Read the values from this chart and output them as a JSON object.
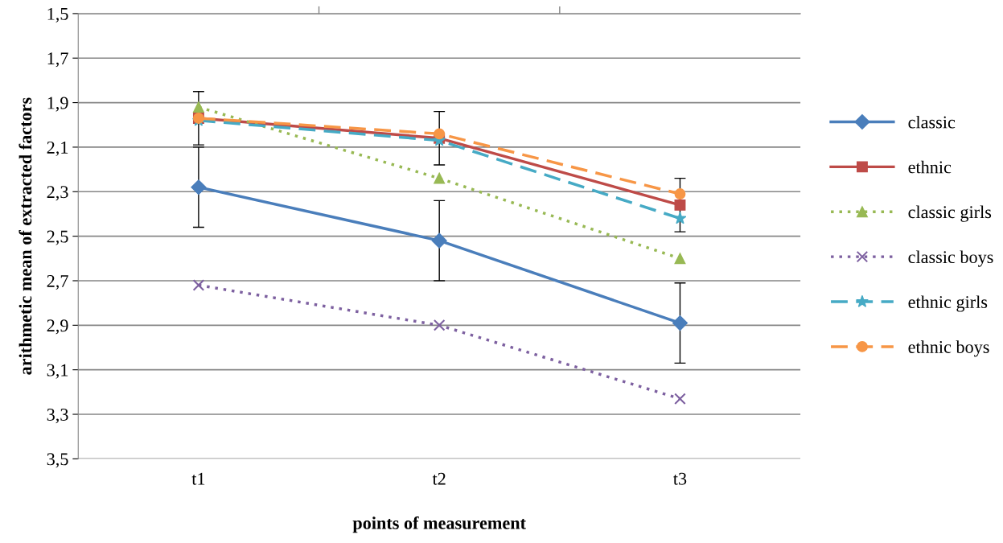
{
  "chart_data": {
    "type": "line",
    "xlabel": "points of measurement",
    "ylabel": "arithmetic mean of extracted factors",
    "categories": [
      "t1",
      "t2",
      "t3"
    ],
    "series": [
      {
        "name": "classic",
        "color": "#4a7ebb",
        "values": [
          2.28,
          2.52,
          2.89
        ],
        "errors": [
          0.18,
          0.18,
          0.18
        ],
        "marker": "diamond",
        "line_style": "solid"
      },
      {
        "name": "ethnic",
        "color": "#be4b48",
        "values": [
          1.97,
          2.06,
          2.36
        ],
        "errors": [
          0.12,
          0.12,
          0.12
        ],
        "marker": "square",
        "line_style": "solid"
      },
      {
        "name": "classic girls",
        "color": "#98b954",
        "values": [
          1.92,
          2.24,
          2.6
        ],
        "marker": "triangle",
        "line_style": "dotted"
      },
      {
        "name": "classic boys",
        "color": "#7d60a0",
        "values": [
          2.72,
          2.9,
          3.23
        ],
        "marker": "cross",
        "line_style": "dotted"
      },
      {
        "name": "ethnic girls",
        "color": "#46aac5",
        "values": [
          1.98,
          2.07,
          2.42
        ],
        "marker": "star",
        "line_style": "dashed"
      },
      {
        "name": "ethnic boys",
        "color": "#f79646",
        "values": [
          1.97,
          2.04,
          2.31
        ],
        "marker": "circle",
        "line_style": "dashed"
      }
    ],
    "ylim": [
      3.5,
      1.5
    ],
    "yticks": [
      {
        "value": 1.5,
        "label": "1,5"
      },
      {
        "value": 1.7,
        "label": "1,7"
      },
      {
        "value": 1.9,
        "label": "1,9"
      },
      {
        "value": 2.1,
        "label": "2,1"
      },
      {
        "value": 2.3,
        "label": "2,3"
      },
      {
        "value": 2.5,
        "label": "2,5"
      },
      {
        "value": 2.7,
        "label": "2,7"
      },
      {
        "value": 2.9,
        "label": "2,9"
      },
      {
        "value": 3.1,
        "label": "3,1"
      },
      {
        "value": 3.3,
        "label": "3,3"
      },
      {
        "value": 3.5,
        "label": "3,5"
      }
    ],
    "grid": "y",
    "legend": "right"
  }
}
